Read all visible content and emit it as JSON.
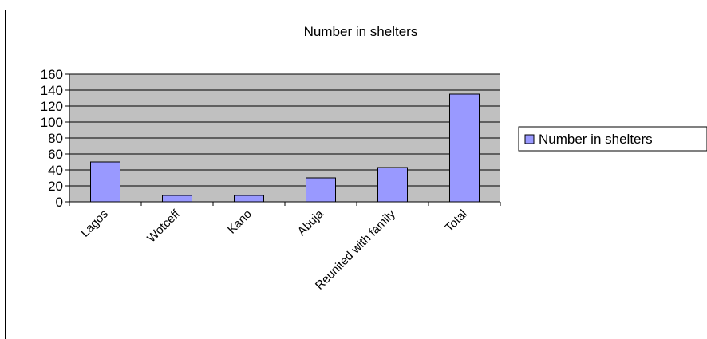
{
  "chart_data": {
    "type": "bar",
    "title": "Number in shelters",
    "xlabel": "",
    "ylabel": "",
    "categories": [
      "Lagos",
      "Wotceff",
      "Kano",
      "Abuja",
      "Reunited with family",
      "Total"
    ],
    "series": [
      {
        "name": "Number in shelters",
        "values": [
          50,
          8,
          8,
          30,
          43,
          135
        ],
        "color": "#9999ff"
      }
    ],
    "ylim": [
      0,
      160
    ],
    "yticks": [
      "0",
      "20",
      "40",
      "60",
      "80",
      "100",
      "120",
      "140",
      "160"
    ],
    "grid": true,
    "legend_position": "right",
    "plot_background": "#c0c0c0"
  }
}
